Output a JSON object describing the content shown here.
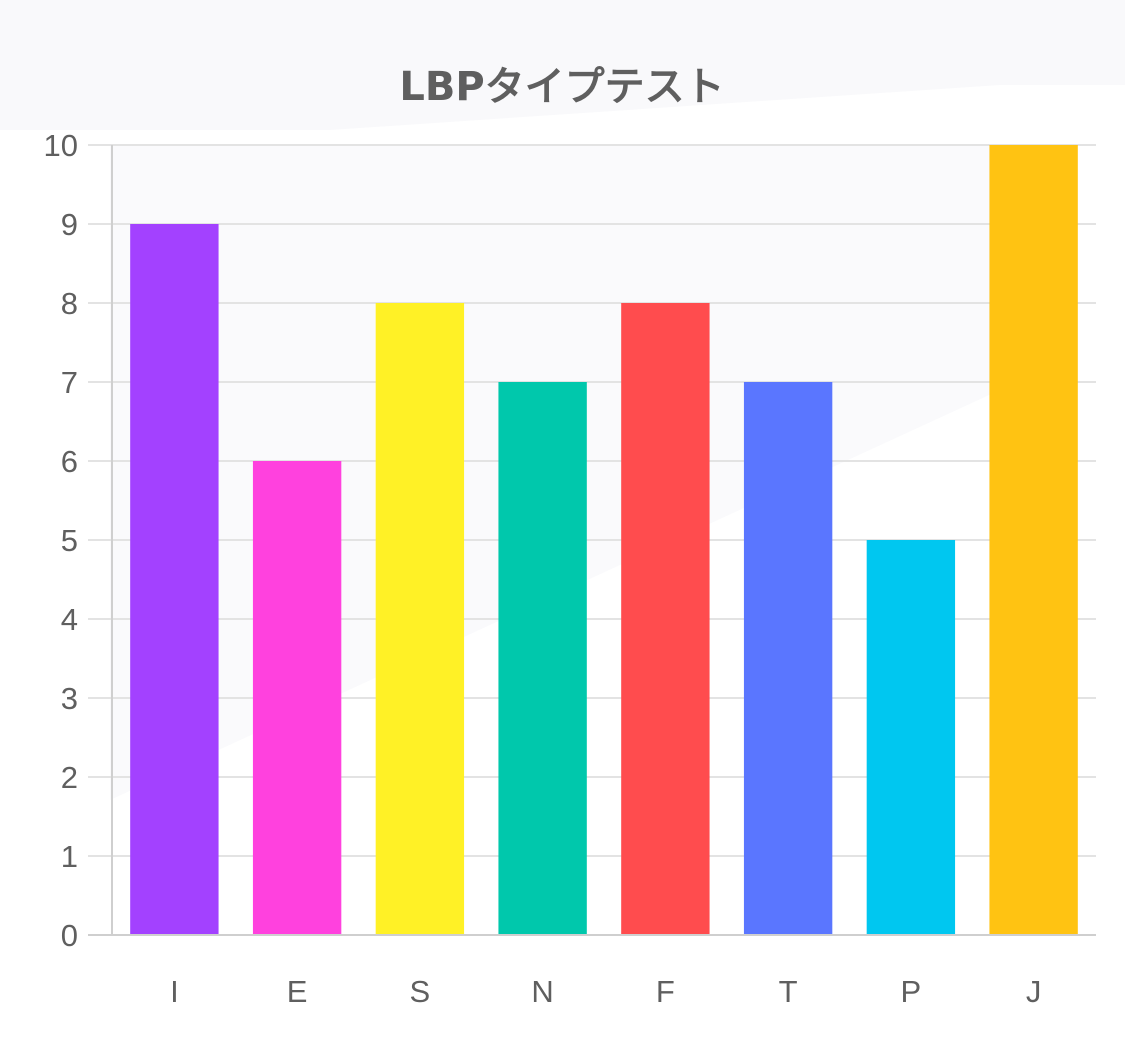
{
  "chart_data": {
    "type": "bar",
    "title": "LBPタイプテスト",
    "categories": [
      "I",
      "E",
      "S",
      "N",
      "F",
      "T",
      "P",
      "J"
    ],
    "values": [
      9,
      6,
      8,
      7,
      8,
      7,
      5,
      10
    ],
    "bar_colors": [
      "#a341ff",
      "#ff41de",
      "#fff126",
      "#00c8ac",
      "#ff4c4e",
      "#5a76ff",
      "#00c7f0",
      "#ffc312"
    ],
    "ylim": [
      0,
      10
    ],
    "yticks": [
      "0",
      "1",
      "2",
      "3",
      "4",
      "5",
      "6",
      "7",
      "8",
      "9",
      "10"
    ],
    "grid": true,
    "legend": "none"
  }
}
